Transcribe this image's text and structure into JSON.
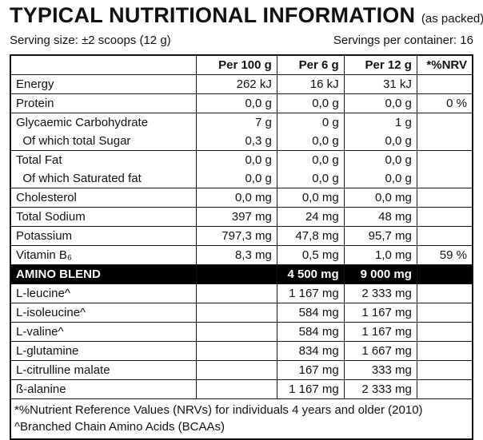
{
  "header": {
    "title": "TYPICAL NUTRITIONAL INFORMATION",
    "note": "(as packed)",
    "serving_size": "Serving size: ±2 scoops (12 g)",
    "servings_per_container": "Servings per container: 16"
  },
  "table": {
    "columns": [
      null,
      "Per 100 g",
      "Per 6 g",
      "Per 12 g",
      "*%NRV"
    ],
    "groups": [
      [
        [
          "Energy",
          "262 kJ",
          "16 kJ",
          "31 kJ",
          null
        ]
      ],
      [
        [
          "Protein",
          "0,0 g",
          "0,0 g",
          "0,0 g",
          "0 %"
        ]
      ],
      [
        [
          "Glycaemic Carbohydrate",
          "7 g",
          "0 g",
          "1 g",
          null
        ],
        [
          "  Of which total Sugar",
          "0,3 g",
          "0,0 g",
          "0,0 g",
          null
        ]
      ],
      [
        [
          "Total Fat",
          "0,0 g",
          "0,0 g",
          "0,0 g",
          null
        ],
        [
          "  Of which Saturated fat",
          "0,0 g",
          "0,0 g",
          "0,0 g",
          null
        ]
      ],
      [
        [
          "Cholesterol",
          "0,0 mg",
          "0,0 mg",
          "0,0 mg",
          null
        ]
      ],
      [
        [
          "Total Sodium",
          "397 mg",
          "24 mg",
          "48 mg",
          null
        ]
      ],
      [
        [
          "Potassium",
          "797,3 mg",
          "47,8 mg",
          "95,7 mg",
          null
        ]
      ],
      [
        [
          "Vitamin B₆",
          "8,3 mg",
          "0,5 mg",
          "1,0 mg",
          "59 %"
        ]
      ],
      [
        [
          "AMINO BLEND",
          null,
          "4 500 mg",
          "9 000 mg",
          null
        ]
      ],
      [
        [
          "L-leucine^",
          null,
          "1 167 mg",
          "2 333 mg",
          null
        ]
      ],
      [
        [
          "L-isoleucine^",
          null,
          "584 mg",
          "1 167 mg",
          null
        ]
      ],
      [
        [
          "L-valine^",
          null,
          "584 mg",
          "1 167 mg",
          null
        ]
      ],
      [
        [
          "L-glutamine",
          null,
          "834 mg",
          "1 667 mg",
          null
        ]
      ],
      [
        [
          "L-citrulline malate",
          null,
          "167 mg",
          "333 mg",
          null
        ]
      ],
      [
        [
          "ß-alanine",
          null,
          "1 167 mg",
          "2 333 mg",
          null
        ]
      ]
    ],
    "footnotes": [
      "*%Nutrient Reference Values (NRVs) for individuals 4 years and older (2010)",
      "^Branched Chain Amino Acids (BCAAs)"
    ]
  }
}
